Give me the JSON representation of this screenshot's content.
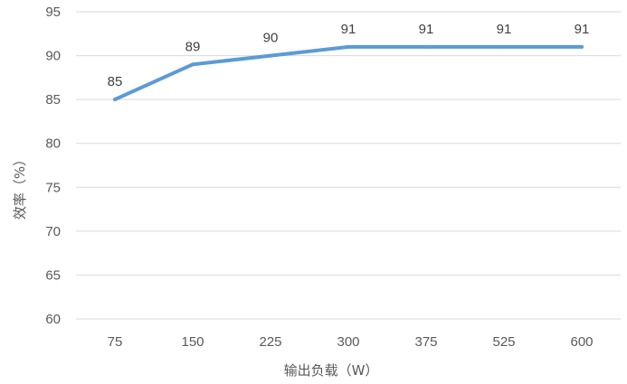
{
  "chart_data": {
    "type": "line",
    "categories": [
      "75",
      "150",
      "225",
      "300",
      "375",
      "525",
      "600"
    ],
    "series": [
      {
        "values": [
          85,
          89,
          90,
          91,
          91,
          91,
          91
        ],
        "color": "#5b9bd5"
      }
    ],
    "data_labels": [
      "85",
      "89",
      "90",
      "91",
      "91",
      "91",
      "91"
    ],
    "xlabel": "输出负载（W）",
    "ylabel": "效率（%）",
    "ylim": [
      60,
      95
    ],
    "yticks": [
      "60",
      "65",
      "70",
      "75",
      "80",
      "85",
      "90",
      "95"
    ],
    "grid": true,
    "legend": "none",
    "gridline_color": "#d9d9d9"
  }
}
